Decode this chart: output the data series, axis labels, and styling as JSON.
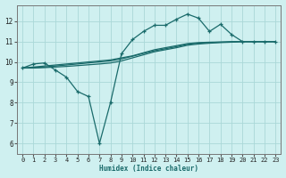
{
  "bg_color": "#cff0f0",
  "grid_color": "#aad8d8",
  "line_color": "#1a6b6b",
  "xlabel": "Humidex (Indice chaleur)",
  "xlim": [
    -0.5,
    23.5
  ],
  "ylim": [
    5.5,
    12.8
  ],
  "yticks": [
    6,
    7,
    8,
    9,
    10,
    11,
    12
  ],
  "xticks": [
    0,
    1,
    2,
    3,
    4,
    5,
    6,
    7,
    8,
    9,
    10,
    11,
    12,
    13,
    14,
    15,
    16,
    17,
    18,
    19,
    20,
    21,
    22,
    23
  ],
  "marker_line_x": [
    0,
    1,
    2,
    3,
    4,
    5,
    6,
    7,
    8,
    9,
    10,
    11,
    12,
    13,
    14,
    15,
    16,
    17,
    18,
    19,
    20,
    21,
    22,
    23
  ],
  "marker_line_y": [
    9.7,
    9.9,
    9.95,
    9.6,
    9.25,
    8.55,
    8.3,
    6.0,
    8.0,
    10.4,
    11.1,
    11.5,
    11.8,
    11.8,
    12.1,
    12.35,
    12.15,
    11.5,
    11.85,
    11.35,
    11.0,
    11.0,
    11.0,
    11.0
  ],
  "smooth1_x": [
    0,
    1,
    2,
    3,
    4,
    5,
    6,
    7,
    8,
    9,
    10,
    11,
    12,
    13,
    14,
    15,
    16,
    17,
    18,
    19,
    20,
    21,
    22,
    23
  ],
  "smooth1_y": [
    9.7,
    9.75,
    9.8,
    9.85,
    9.9,
    9.95,
    10.0,
    10.05,
    10.1,
    10.2,
    10.3,
    10.45,
    10.6,
    10.7,
    10.8,
    10.9,
    10.95,
    10.97,
    10.98,
    11.0,
    11.0,
    11.0,
    11.0,
    11.0
  ],
  "smooth2_x": [
    0,
    1,
    2,
    3,
    4,
    5,
    6,
    7,
    8,
    9,
    10,
    11,
    12,
    13,
    14,
    15,
    16,
    17,
    18,
    19,
    20,
    21,
    22,
    23
  ],
  "smooth2_y": [
    9.7,
    9.72,
    9.75,
    9.8,
    9.85,
    9.9,
    9.95,
    10.0,
    10.05,
    10.15,
    10.28,
    10.42,
    10.55,
    10.65,
    10.75,
    10.87,
    10.92,
    10.95,
    10.97,
    10.98,
    11.0,
    11.0,
    11.0,
    11.0
  ],
  "smooth3_x": [
    0,
    1,
    2,
    3,
    4,
    5,
    6,
    7,
    8,
    9,
    10,
    11,
    12,
    13,
    14,
    15,
    16,
    17,
    18,
    19,
    20,
    21,
    22,
    23
  ],
  "smooth3_y": [
    9.7,
    9.7,
    9.72,
    9.75,
    9.78,
    9.82,
    9.86,
    9.9,
    9.95,
    10.05,
    10.2,
    10.35,
    10.5,
    10.6,
    10.7,
    10.82,
    10.88,
    10.92,
    10.95,
    10.97,
    11.0,
    11.0,
    11.0,
    11.0
  ]
}
